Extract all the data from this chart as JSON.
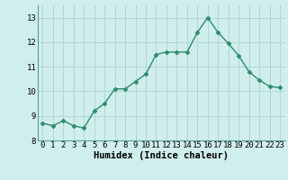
{
  "x": [
    0,
    1,
    2,
    3,
    4,
    5,
    6,
    7,
    8,
    9,
    10,
    11,
    12,
    13,
    14,
    15,
    16,
    17,
    18,
    19,
    20,
    21,
    22,
    23
  ],
  "y": [
    8.7,
    8.6,
    8.8,
    8.6,
    8.5,
    9.2,
    9.5,
    10.1,
    10.1,
    10.4,
    10.7,
    11.5,
    11.6,
    11.6,
    11.6,
    12.4,
    13.0,
    12.4,
    11.95,
    11.45,
    10.8,
    10.45,
    10.2,
    10.15
  ],
  "line_color": "#2e8b6e",
  "marker": "D",
  "markersize": 2.5,
  "linewidth": 1.0,
  "bg_color": "#d0eeec",
  "grid_color": "#b0d8d4",
  "xlabel": "Humidex (Indice chaleur)",
  "xlabel_fontsize": 7.5,
  "tick_fontsize": 6.5,
  "ylim": [
    8.0,
    13.5
  ],
  "xlim": [
    -0.5,
    23.5
  ],
  "yticks": [
    8,
    9,
    10,
    11,
    12,
    13
  ],
  "xticks": [
    0,
    1,
    2,
    3,
    4,
    5,
    6,
    7,
    8,
    9,
    10,
    11,
    12,
    13,
    14,
    15,
    16,
    17,
    18,
    19,
    20,
    21,
    22,
    23
  ]
}
